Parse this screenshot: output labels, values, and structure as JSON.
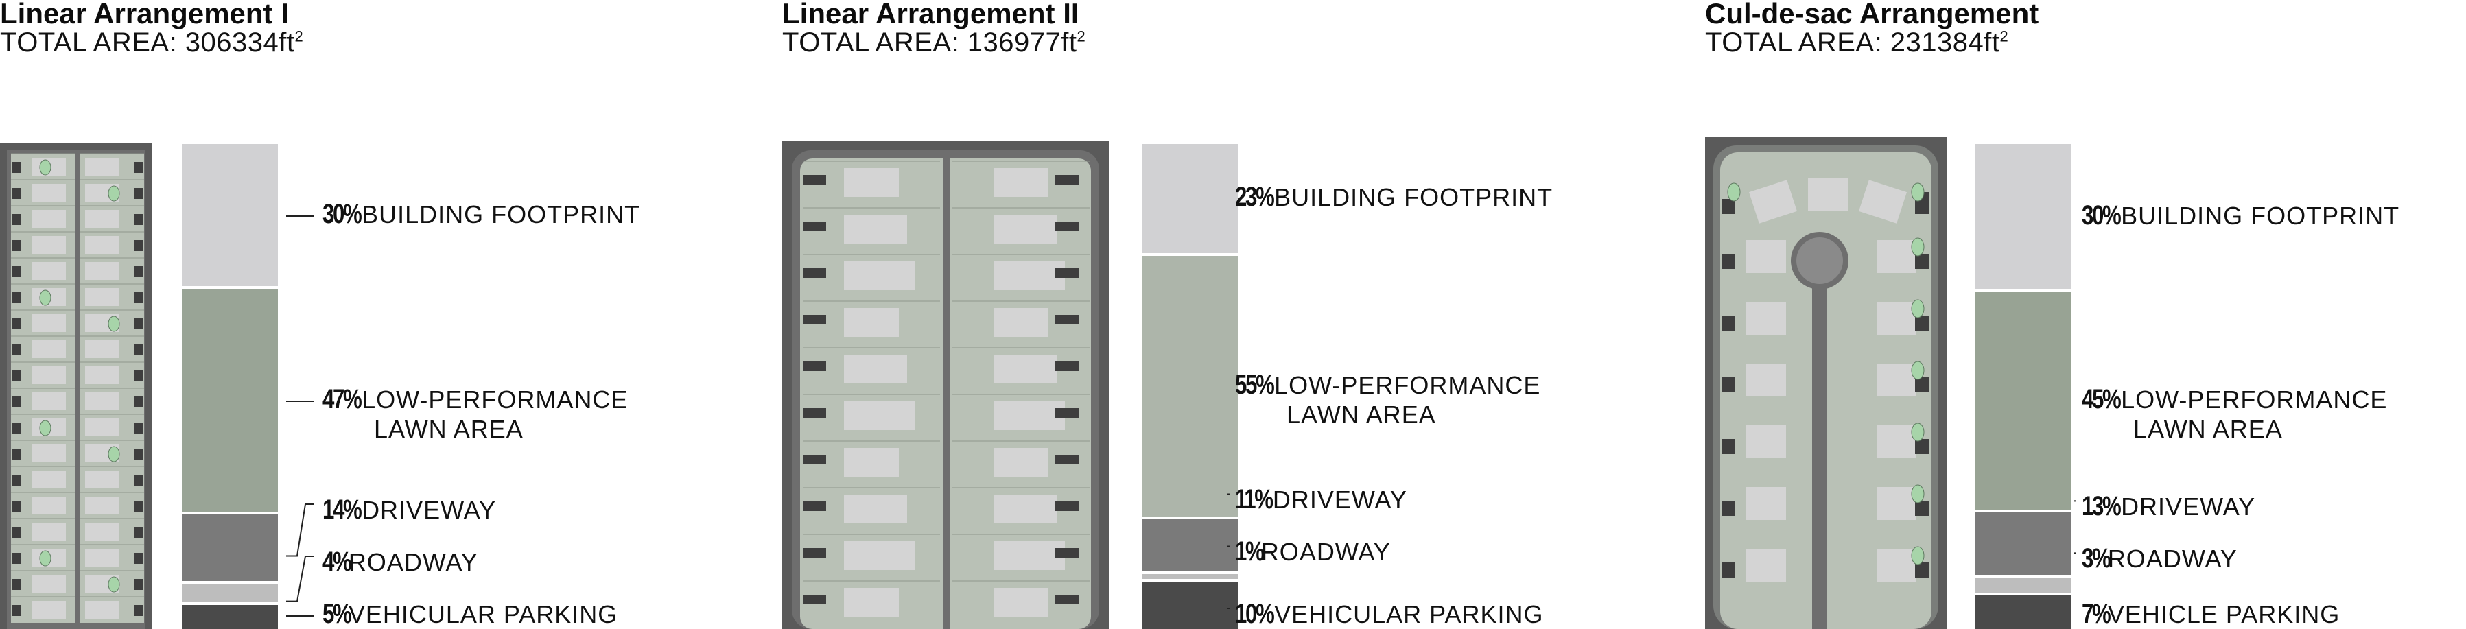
{
  "panels": [
    {
      "title": "Linear Arrangement I",
      "area_prefix": "TOTAL AREA: ",
      "area_value": "306334ft",
      "area_unit_sup": "2",
      "segments": [
        {
          "pct": "30%",
          "label": "BUILDING FOOTPRINT",
          "label2": "",
          "value": 30,
          "color": "#d1d1d3"
        },
        {
          "pct": "47%",
          "label": "LOW-PERFORMANCE",
          "label2": "LAWN AREA",
          "value": 47,
          "color": "#99a496"
        },
        {
          "pct": "14%",
          "label": "DRIVEWAY",
          "label2": "",
          "value": 14,
          "color": "#7a7a7a"
        },
        {
          "pct": "4%",
          "label": "ROADWAY",
          "label2": "",
          "value": 4,
          "color": "#bdbdbd"
        },
        {
          "pct": "5%",
          "label": "VEHICULAR PARKING",
          "label2": "",
          "value": 5,
          "color": "#4a4a4a"
        }
      ]
    },
    {
      "title": "Linear Arrangement II",
      "area_prefix": "TOTAL AREA: ",
      "area_value": "136977ft",
      "area_unit_sup": "2",
      "segments": [
        {
          "pct": "23%",
          "label": "BUILDING FOOTPRINT",
          "label2": "",
          "value": 23,
          "color": "#d1d1d3"
        },
        {
          "pct": "55%",
          "label": "LOW-PERFORMANCE",
          "label2": "LAWN AREA",
          "value": 55,
          "color": "#adb5aa"
        },
        {
          "pct": "11%",
          "label": "DRIVEWAY",
          "label2": "",
          "value": 11,
          "color": "#7a7a7a"
        },
        {
          "pct": "1%",
          "label": "ROADWAY",
          "label2": "",
          "value": 1,
          "color": "#bdbdbd"
        },
        {
          "pct": "10%",
          "label": "VEHICULAR PARKING",
          "label2": "",
          "value": 10,
          "color": "#4a4a4a"
        }
      ]
    },
    {
      "title": "Cul-de-sac Arrangement",
      "area_prefix": "TOTAL AREA: ",
      "area_value": "231384ft",
      "area_unit_sup": "2",
      "segments": [
        {
          "pct": "30%",
          "label": "BUILDING FOOTPRINT",
          "label2": "",
          "value": 30,
          "color": "#d1d1d3"
        },
        {
          "pct": "45%",
          "label": "LOW-PERFORMANCE",
          "label2": "LAWN AREA",
          "value": 45,
          "color": "#98a394"
        },
        {
          "pct": "13%",
          "label": "DRIVEWAY",
          "label2": "",
          "value": 13,
          "color": "#7a7a7a"
        },
        {
          "pct": "3%",
          "label": "ROADWAY",
          "label2": "",
          "value": 3,
          "color": "#bdbdbd"
        },
        {
          "pct": "7%",
          "label": "VEHICLE PARKING",
          "label2": "",
          "value": 7,
          "color": "#4a4a4a"
        }
      ]
    }
  ],
  "colors": {
    "frame": "#5a5a5a",
    "lot": "#b9c1b6",
    "lot_line": "#8e968c",
    "house": "#d4d4d4",
    "road": "#6e6e6e",
    "parking": "#3e3e3e",
    "tree": "#a7d4a9"
  }
}
